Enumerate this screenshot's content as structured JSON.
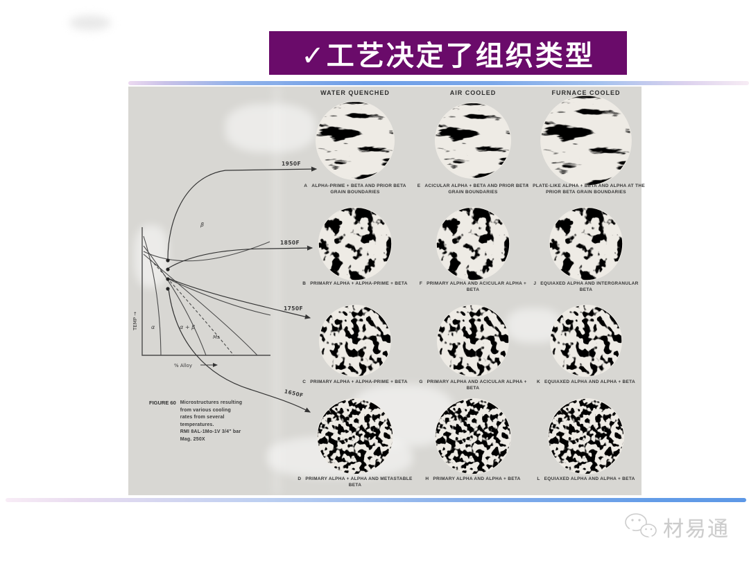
{
  "slide": {
    "title": "✓工艺决定了组织类型"
  },
  "figure": {
    "columns": [
      "WATER QUENCHED",
      "AIR COOLED",
      "FURNACE COOLED"
    ],
    "temperatures": [
      "1950F",
      "1850F",
      "1750F",
      "1650F"
    ],
    "cells": [
      {
        "letter": "A",
        "caption": "ALPHA-PRIME + BETA AND PRIOR BETA GRAIN BOUNDARIES"
      },
      {
        "letter": "E",
        "caption": "ACICULAR ALPHA + BETA AND PRIOR BETA GRAIN BOUNDARIES"
      },
      {
        "letter": "I",
        "caption": "PLATE-LIKE ALPHA + BETA AND ALPHA AT THE PRIOR BETA GRAIN BOUNDARIES"
      },
      {
        "letter": "B",
        "caption": "PRIMARY ALPHA + ALPHA-PRIME + BETA"
      },
      {
        "letter": "F",
        "caption": "PRIMARY ALPHA AND ACICULAR ALPHA + BETA"
      },
      {
        "letter": "J",
        "caption": "EQUIAXED ALPHA AND INTERGRANULAR BETA"
      },
      {
        "letter": "C",
        "caption": "PRIMARY ALPHA + ALPHA-PRIME + BETA"
      },
      {
        "letter": "G",
        "caption": "PRIMARY ALPHA AND ACICULAR ALPHA + BETA"
      },
      {
        "letter": "K",
        "caption": "EQUIAXED ALPHA AND ALPHA + BETA"
      },
      {
        "letter": "D",
        "caption": "PRIMARY ALPHA + ALPHA AND METASTABLE BETA"
      },
      {
        "letter": "H",
        "caption": "PRIMARY ALPHA AND ALPHA + BETA"
      },
      {
        "letter": "L",
        "caption": "EQUIAXED ALPHA AND ALPHA + BETA"
      }
    ],
    "diagram": {
      "y_axis_label": "TEMP →",
      "x_axis_label": "% Alloy",
      "beta": "β",
      "alpha": "α",
      "alpha_beta": "α + β",
      "ms": "Ms"
    },
    "caption_label": "FIGURE 60",
    "caption_text": "Microstructures resulting\nfrom various cooling\nrates from several\ntemperatures.\nRMI 8AL-1Mo-1V 3/4\" bar\nMag. 250X"
  },
  "watermark": {
    "text": "材易通"
  },
  "colors": {
    "banner": "#6a0b6a",
    "accent_blue": "#6f9fe8",
    "accent_pink": "#f3d7ec"
  }
}
